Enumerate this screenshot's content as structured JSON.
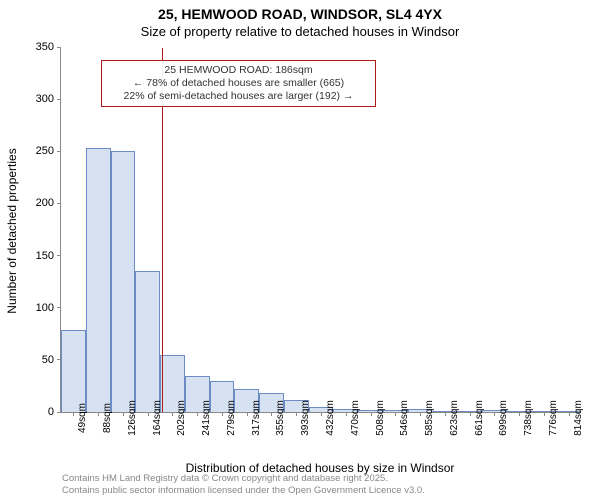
{
  "title": {
    "main": "25, HEMWOOD ROAD, WINDSOR, SL4 4YX",
    "sub": "Size of property relative to detached houses in Windsor"
  },
  "chart": {
    "type": "bar",
    "ylabel": "Number of detached properties",
    "xlabel": "Distribution of detached houses by size in Windsor",
    "ylim": [
      0,
      350
    ],
    "ytick_step": 50,
    "categories": [
      "49sqm",
      "88sqm",
      "126sqm",
      "164sqm",
      "202sqm",
      "241sqm",
      "279sqm",
      "317sqm",
      "355sqm",
      "393sqm",
      "432sqm",
      "470sqm",
      "508sqm",
      "546sqm",
      "585sqm",
      "623sqm",
      "661sqm",
      "699sqm",
      "738sqm",
      "776sqm",
      "814sqm"
    ],
    "values": [
      79,
      253,
      250,
      135,
      55,
      35,
      30,
      22,
      18,
      12,
      5,
      3,
      2,
      2,
      3,
      1,
      0,
      2,
      0,
      0,
      1
    ],
    "bar_fill": "#d6e2f2",
    "bar_stroke": "#6b8cc4",
    "bar_width": 1.0,
    "background_color": "#ffffff",
    "axis_color": "#888888",
    "marker": {
      "value_sqm": 186,
      "color": "#b01919"
    },
    "annotation": {
      "line1": "25 HEMWOOD ROAD: 186sqm",
      "line2": "← 78% of detached houses are smaller (665)",
      "line3": "22% of semi-detached houses are larger (192) →",
      "border_color": "#b01919",
      "text_color": "#333333"
    },
    "label_fontsize": 12,
    "tick_fontsize": 11
  },
  "footer": {
    "line1": "Contains HM Land Registry data © Crown copyright and database right 2025.",
    "line2": "Contains public sector information licensed under the Open Government Licence v3.0."
  }
}
